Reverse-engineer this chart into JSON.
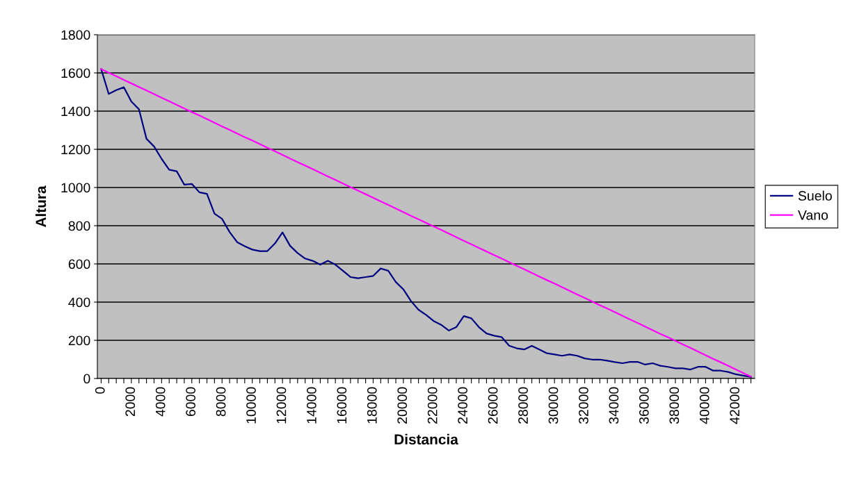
{
  "chart_data": {
    "type": "line",
    "xlabel": "Distancia",
    "ylabel": "Altura",
    "categories": [
      "0",
      null,
      null,
      null,
      "2000",
      null,
      null,
      null,
      "4000",
      null,
      null,
      null,
      "6000",
      null,
      null,
      null,
      "8000",
      null,
      null,
      null,
      "10000",
      null,
      null,
      null,
      "12000",
      null,
      null,
      null,
      "14000",
      null,
      null,
      null,
      "16000",
      null,
      null,
      null,
      "18000",
      null,
      null,
      null,
      "20000",
      null,
      null,
      null,
      "22000",
      null,
      null,
      null,
      "24000",
      null,
      null,
      null,
      "26000",
      null,
      null,
      null,
      "28000",
      null,
      null,
      null,
      "30000",
      null,
      null,
      null,
      "32000",
      null,
      null,
      null,
      "34000",
      null,
      null,
      null,
      "36000",
      null,
      null,
      null,
      "38000",
      null,
      null,
      null,
      "40000",
      null,
      null,
      null,
      "42000",
      null,
      null
    ],
    "series": [
      {
        "name": "Suelo",
        "color": "#000080",
        "values": [
          1620,
          1490,
          1510,
          1525,
          1450,
          1410,
          1255,
          1215,
          1150,
          1093,
          1085,
          1015,
          1019,
          975,
          967,
          863,
          836,
          767,
          714,
          693,
          675,
          667,
          667,
          707,
          765,
          695,
          657,
          628,
          616,
          596,
          616,
          596,
          564,
          531,
          525,
          531,
          537,
          576,
          564,
          505,
          467,
          406,
          360,
          333,
          301,
          281,
          251,
          269,
          327,
          315,
          269,
          236,
          224,
          217,
          172,
          158,
          152,
          171,
          152,
          132,
          126,
          119,
          126,
          119,
          105,
          99,
          99,
          93,
          86,
          80,
          87,
          87,
          73,
          80,
          67,
          61,
          53,
          53,
          47,
          61,
          61,
          41,
          41,
          34,
          22,
          15,
          8
        ]
      },
      {
        "name": "Vano",
        "color": "#ff00ff",
        "values": [
          1620,
          1601,
          1583,
          1564,
          1545,
          1526,
          1508,
          1489,
          1470,
          1452,
          1433,
          1414,
          1395,
          1377,
          1358,
          1339,
          1320,
          1302,
          1283,
          1264,
          1246,
          1227,
          1208,
          1190,
          1171,
          1152,
          1133,
          1115,
          1096,
          1077,
          1058,
          1040,
          1021,
          1002,
          984,
          965,
          946,
          927,
          909,
          890,
          871,
          852,
          834,
          815,
          796,
          778,
          759,
          740,
          721,
          703,
          684,
          665,
          646,
          628,
          609,
          590,
          572,
          553,
          534,
          515,
          497,
          478,
          459,
          440,
          422,
          403,
          384,
          366,
          347,
          328,
          309,
          291,
          272,
          253,
          234,
          216,
          197,
          178,
          160,
          141,
          122,
          103,
          85,
          66,
          47,
          28,
          10
        ]
      }
    ],
    "ylim": [
      0,
      1800
    ],
    "yticks": [
      0,
      200,
      400,
      600,
      800,
      1000,
      1200,
      1400,
      1600,
      1800
    ],
    "grid": "y",
    "legend": "right",
    "marker": "none",
    "line_style": "solid"
  }
}
